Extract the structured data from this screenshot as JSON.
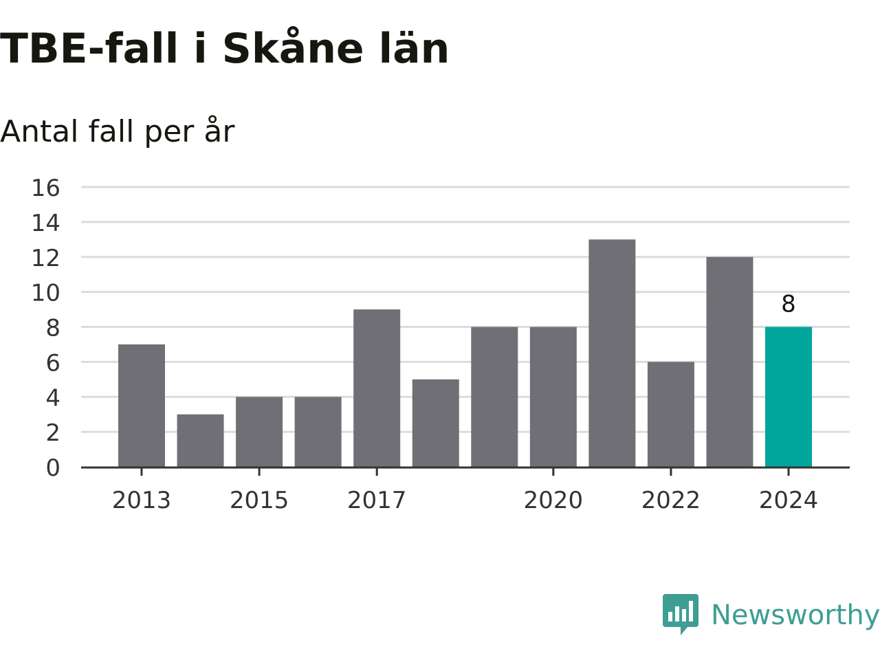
{
  "chart_data": {
    "type": "bar",
    "title": "TBE-fall i Skåne län",
    "subtitle": "Antal fall per år",
    "categories": [
      "2013",
      "2014",
      "2015",
      "2016",
      "2017",
      "2018",
      "2019",
      "2020",
      "2021",
      "2022",
      "2023",
      "2024"
    ],
    "values": [
      7,
      3,
      4,
      4,
      9,
      5,
      8,
      8,
      13,
      6,
      12,
      8
    ],
    "x_tick_labels": [
      "2013",
      "2015",
      "2017",
      "2020",
      "2022",
      "2024"
    ],
    "y_ticks": [
      0,
      2,
      4,
      6,
      8,
      10,
      12,
      14,
      16
    ],
    "ylim": [
      0,
      16
    ],
    "grid": true,
    "highlight": {
      "category": "2024",
      "label": "8"
    },
    "colors": {
      "bar": "#706f75",
      "highlight": "#00a59b",
      "grid": "#dcdcdc",
      "axis": "#333333"
    }
  },
  "brand": {
    "name": "Newsworthy",
    "icon": "newsworthy-logo-icon",
    "color": "#3e9e94"
  }
}
